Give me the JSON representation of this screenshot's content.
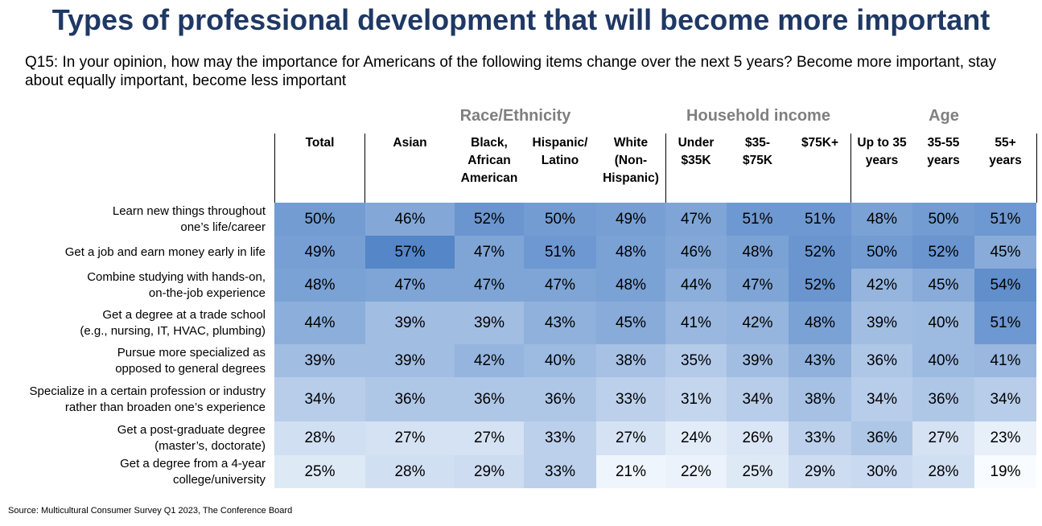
{
  "title": "Types of professional development that will become more important",
  "question": "Q15: In your opinion, how may the importance for Americans of the following items change over the next 5 years? Become more important, stay about equally important, become less important",
  "source": "Source: Multicultural Consumer Survey Q1 2023, The Conference Board",
  "chart_data": {
    "type": "heatmap",
    "title": "Types of professional development that will become more important",
    "groups": [
      {
        "label": "Race/Ethnicity",
        "columns": [
          1,
          2,
          3,
          4
        ]
      },
      {
        "label": "Household income",
        "columns": [
          5,
          6,
          7
        ]
      },
      {
        "label": "Age",
        "columns": [
          8,
          9,
          10
        ]
      }
    ],
    "columns": [
      {
        "lines": [
          "Total"
        ]
      },
      {
        "lines": [
          "Asian"
        ]
      },
      {
        "lines": [
          "Black,",
          "African",
          "American"
        ]
      },
      {
        "lines": [
          "Hispanic/",
          "Latino"
        ]
      },
      {
        "lines": [
          "White",
          "(Non-",
          "Hispanic)"
        ]
      },
      {
        "lines": [
          "Under",
          "$35K"
        ]
      },
      {
        "lines": [
          "$35-",
          "$75K"
        ]
      },
      {
        "lines": [
          "$75K+"
        ]
      },
      {
        "lines": [
          "Up to 35",
          "years"
        ]
      },
      {
        "lines": [
          "35-55",
          "years"
        ]
      },
      {
        "lines": [
          "55+",
          "years"
        ]
      }
    ],
    "rows": [
      {
        "lines": [
          "Learn new things throughout",
          "one’s life/career"
        ],
        "values": [
          50,
          46,
          52,
          50,
          49,
          47,
          51,
          51,
          48,
          50,
          51
        ]
      },
      {
        "lines": [
          "Get a job and earn money early in life"
        ],
        "values": [
          49,
          57,
          47,
          51,
          48,
          46,
          48,
          52,
          50,
          52,
          45
        ]
      },
      {
        "lines": [
          "Combine studying with hands-on,",
          "on-the-job experience"
        ],
        "values": [
          48,
          47,
          47,
          47,
          48,
          44,
          47,
          52,
          42,
          45,
          54
        ]
      },
      {
        "lines": [
          "Get a degree at a trade school",
          "(e.g., nursing, IT, HVAC, plumbing)"
        ],
        "values": [
          44,
          39,
          39,
          43,
          45,
          41,
          42,
          48,
          39,
          40,
          51
        ]
      },
      {
        "lines": [
          "Pursue more specialized as",
          "opposed to general degrees"
        ],
        "values": [
          39,
          39,
          42,
          40,
          38,
          35,
          39,
          43,
          36,
          40,
          41
        ]
      },
      {
        "lines": [
          "Specialize in a certain profession or industry",
          "rather than broaden one’s experience"
        ],
        "values": [
          34,
          36,
          36,
          36,
          33,
          31,
          34,
          38,
          34,
          36,
          34
        ]
      },
      {
        "lines": [
          "Get a post-graduate degree",
          "(master’s, doctorate)"
        ],
        "values": [
          28,
          27,
          27,
          33,
          27,
          24,
          26,
          33,
          36,
          27,
          23
        ]
      },
      {
        "lines": [
          "Get a degree from a 4-year",
          "college/university"
        ],
        "values": [
          25,
          28,
          29,
          33,
          21,
          22,
          25,
          29,
          30,
          28,
          19
        ]
      }
    ],
    "unit": "%"
  }
}
